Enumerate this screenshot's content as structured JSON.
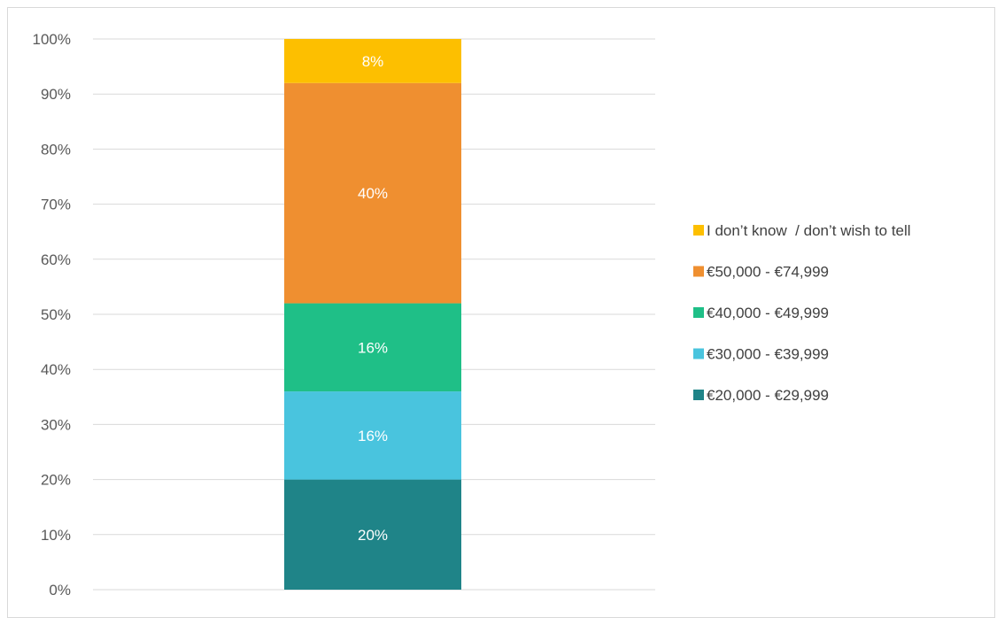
{
  "chart_data": {
    "type": "bar",
    "stacked": true,
    "categories": [
      ""
    ],
    "y_ticks": [
      "0%",
      "10%",
      "20%",
      "30%",
      "40%",
      "50%",
      "60%",
      "70%",
      "80%",
      "90%",
      "100%"
    ],
    "ylim": [
      0,
      100
    ],
    "grid": true,
    "legend_position": "right",
    "series": [
      {
        "name": "€20,000 - €29,999",
        "values": [
          20
        ],
        "label": "20%",
        "color": "#1f8488"
      },
      {
        "name": "€30,000 - €39,999",
        "values": [
          16
        ],
        "label": "16%",
        "color": "#49c4de"
      },
      {
        "name": "€40,000 - €49,999",
        "values": [
          16
        ],
        "label": "16%",
        "color": "#1fbf87"
      },
      {
        "name": "€50,000 - €74,999",
        "values": [
          40
        ],
        "label": "40%",
        "color": "#ef8f30"
      },
      {
        "name": "I don’t know  / don’t wish to tell",
        "values": [
          8
        ],
        "label": "8%",
        "color": "#fdbf00"
      }
    ],
    "legend_order": [
      4,
      3,
      2,
      1,
      0
    ]
  }
}
